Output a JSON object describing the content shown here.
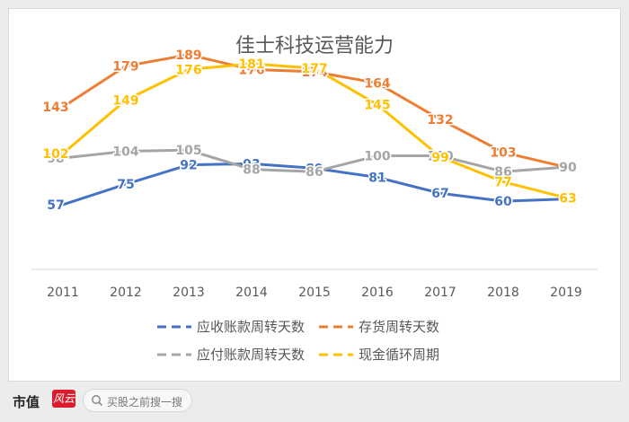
{
  "chart_data": {
    "type": "line",
    "title": "佳士科技运营能力",
    "categories": [
      "2011",
      "2012",
      "2013",
      "2014",
      "2015",
      "2016",
      "2017",
      "2018",
      "2019"
    ],
    "ylim": [
      0,
      200
    ],
    "grid": false,
    "legend_placement": "bottom",
    "series": [
      {
        "name": "应收账款周转天数",
        "color": "#4472c4",
        "values": [
          57,
          75,
          92,
          93,
          89,
          81,
          67,
          60,
          62
        ]
      },
      {
        "name": "存货周转天数",
        "color": "#ed7d31",
        "values": [
          143,
          179,
          189,
          176,
          174,
          164,
          132,
          103,
          90
        ]
      },
      {
        "name": "应付账款周转天数",
        "color": "#a5a5a5",
        "values": [
          98,
          104,
          105,
          88,
          86,
          100,
          100,
          86,
          90
        ]
      },
      {
        "name": "现金循环周期",
        "color": "#ffc000",
        "values": [
          102,
          149,
          176,
          181,
          177,
          145,
          99,
          77,
          63
        ]
      }
    ]
  },
  "footer": {
    "brand": "市值",
    "brand_mark": "风云",
    "search_placeholder": "买股之前搜一搜"
  }
}
